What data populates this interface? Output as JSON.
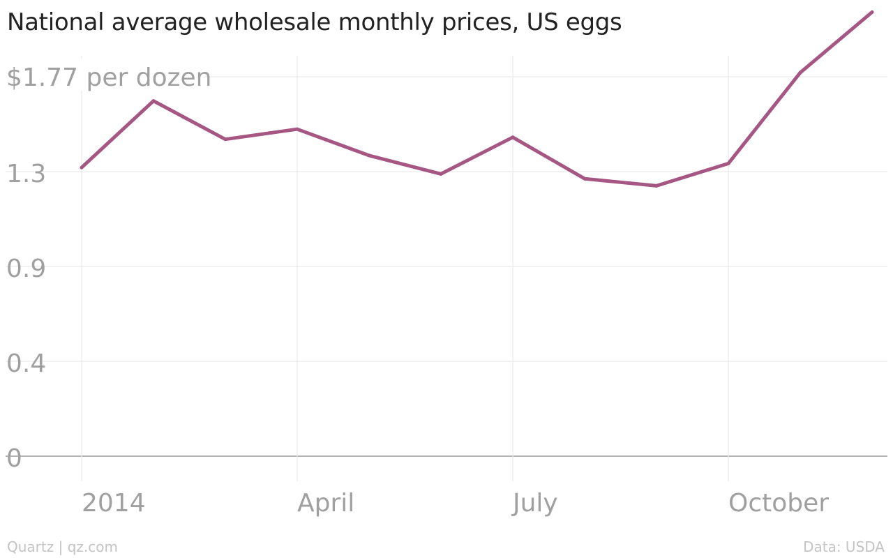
{
  "chart_data": {
    "type": "line",
    "title": "National average wholesale monthly prices, US eggs",
    "xlabel": "",
    "ylabel": "",
    "top_tick_label": "$1.77 per dozen",
    "x": [
      "2014-01",
      "2014-02",
      "2014-03",
      "2014-04",
      "2014-05",
      "2014-06",
      "2014-07",
      "2014-08",
      "2014-09",
      "2014-10",
      "2014-11",
      "2014-12"
    ],
    "x_tick_values": [
      "2014-01",
      "2014-04",
      "2014-07",
      "2014-10"
    ],
    "x_tick_labels": [
      "2014",
      "April",
      "July",
      "October"
    ],
    "series": [
      {
        "values": [
          1.32,
          1.65,
          1.46,
          1.51,
          1.38,
          1.29,
          1.47,
          1.27,
          1.24,
          1.34,
          1.79,
          2.09
        ]
      }
    ],
    "y_ticks": [
      0,
      0.4,
      0.9,
      1.3,
      1.77
    ],
    "y_tick_labels": [
      "0",
      "0.4",
      "0.9",
      "1.3",
      "$1.77 per dozen"
    ],
    "ylim": [
      0,
      2.0
    ],
    "grid": true,
    "colors": {
      "line": "#a65683",
      "grid": "#e9e9e9",
      "baseline": "#9a9a9a",
      "tick_text": "#a0a0a0",
      "title": "#222222",
      "footer": "#c4c4c4"
    }
  },
  "footer": {
    "source": "Quartz | qz.com",
    "data": "Data: USDA"
  }
}
